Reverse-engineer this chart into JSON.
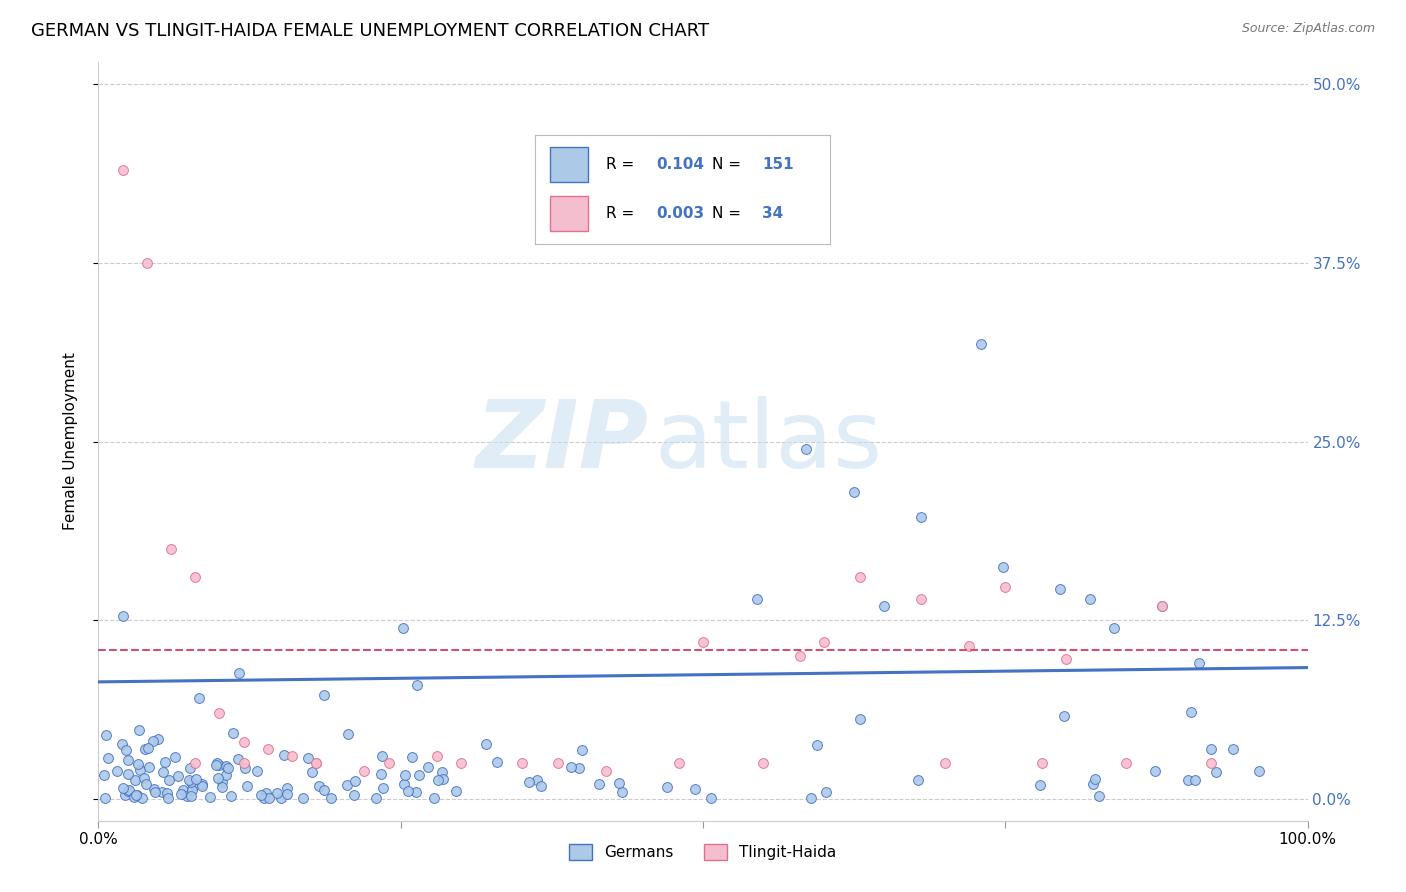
{
  "title": "GERMAN VS TLINGIT-HAIDA FEMALE UNEMPLOYMENT CORRELATION CHART",
  "source": "Source: ZipAtlas.com",
  "ylabel": "Female Unemployment",
  "xlim": [
    0.0,
    1.0
  ],
  "ylim": [
    -0.015,
    0.515
  ],
  "ytick_labels_right": [
    "0.0%",
    "12.5%",
    "25.0%",
    "37.5%",
    "50.0%"
  ],
  "ytick_values": [
    0.0,
    0.125,
    0.25,
    0.375,
    0.5
  ],
  "german_fill_color": "#adc9e8",
  "german_edge_color": "#4472c4",
  "tlingit_fill_color": "#f5bece",
  "tlingit_edge_color": "#e07090",
  "german_line_color": "#4472c4",
  "tlingit_line_color": "#d05070",
  "legend_text_color": "#4472c4",
  "R_german": "0.104",
  "N_german": "151",
  "R_tlingit": "0.003",
  "N_tlingit": "34",
  "background_color": "#ffffff",
  "grid_color": "#cccccc",
  "title_fontsize": 13,
  "axis_label_fontsize": 11,
  "tick_fontsize": 11,
  "right_tick_color": "#4472c4",
  "german_trend_start_y": 0.082,
  "german_trend_end_y": 0.092,
  "tlingit_trend_y": 0.104,
  "scatter_size": 50,
  "scatter_linewidth": 0.7
}
